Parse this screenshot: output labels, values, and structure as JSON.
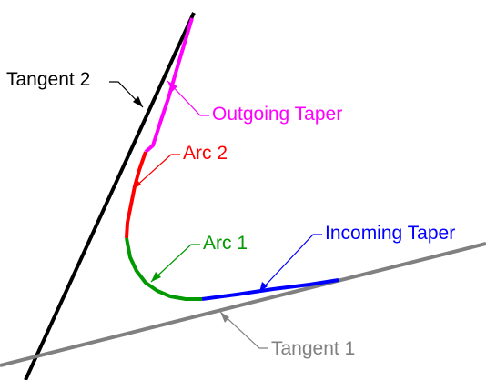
{
  "labels": {
    "tangent_2": "Tangent 2",
    "outgoing_taper": "Outgoing Taper",
    "arc_2": "Arc 2",
    "arc_1": "Arc 1",
    "incoming_taper": "Incoming Taper",
    "tangent_1": "Tangent 1"
  },
  "colors": {
    "tangent_2": "#000000",
    "outgoing_taper": "#ff00ff",
    "arc_2": "#ff0000",
    "arc_1": "#009900",
    "incoming_taper": "#0000ff",
    "tangent_1": "#808080"
  }
}
